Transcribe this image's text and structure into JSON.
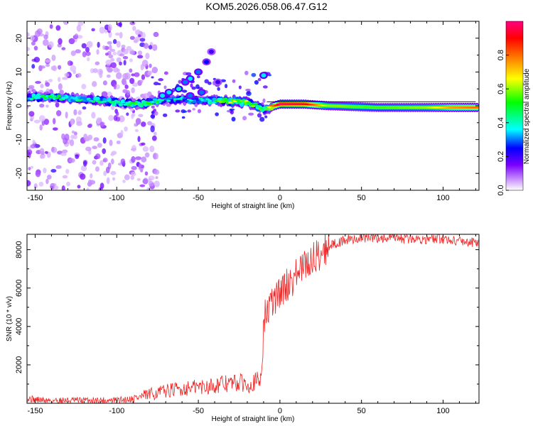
{
  "title": "KOM5.2026.058.06.47.G12",
  "chart_data": [
    {
      "type": "heatmap",
      "xlabel": "Height of straight line (km)",
      "ylabel": "Frequency (Hz)",
      "xlim": [
        -155,
        122
      ],
      "ylim": [
        -25,
        25
      ],
      "xticks": [
        "-150",
        "-100",
        "-50",
        "0",
        "50",
        "100"
      ],
      "yticks": [
        "-20",
        "-10",
        "0",
        "10",
        "20"
      ],
      "colorbar_label": "Normalized spectral amplitude",
      "colorbar_ticks": [
        "0.0",
        "0.2",
        "0.4",
        "0.6",
        "0.8"
      ],
      "colorbar_range": [
        0,
        1
      ],
      "colormap": [
        "#ffffff",
        "#cc99ff",
        "#7a00ff",
        "#0000ff",
        "#00ffff",
        "#00ff00",
        "#ffff00",
        "#ff8000",
        "#ff0000",
        "#ff0080"
      ],
      "main_trace": [
        {
          "x": -155,
          "y": 2.5,
          "amp": 0.35
        },
        {
          "x": -140,
          "y": 2.5,
          "amp": 0.4
        },
        {
          "x": -120,
          "y": 2.0,
          "amp": 0.35
        },
        {
          "x": -100,
          "y": 1.0,
          "amp": 0.4
        },
        {
          "x": -85,
          "y": 0.5,
          "amp": 0.45
        },
        {
          "x": -70,
          "y": 2.0,
          "amp": 0.35
        },
        {
          "x": -50,
          "y": 1.5,
          "amp": 0.3
        },
        {
          "x": -35,
          "y": 1.5,
          "amp": 0.5
        },
        {
          "x": -20,
          "y": 1.0,
          "amp": 0.6
        },
        {
          "x": -10,
          "y": -1.0,
          "amp": 0.4
        },
        {
          "x": 0,
          "y": 0.5,
          "amp": 0.95
        },
        {
          "x": 15,
          "y": 0.5,
          "amp": 0.9
        },
        {
          "x": 30,
          "y": 0.0,
          "amp": 0.55
        },
        {
          "x": 60,
          "y": -0.5,
          "amp": 0.5
        },
        {
          "x": 90,
          "y": -0.5,
          "amp": 0.55
        },
        {
          "x": 105,
          "y": -0.5,
          "amp": 0.7
        },
        {
          "x": 120,
          "y": -0.5,
          "amp": 0.75
        }
      ],
      "blobs": [
        {
          "x": -10,
          "y": 9,
          "amp": 0.35
        },
        {
          "x": -42,
          "y": 16,
          "amp": 0.2
        },
        {
          "x": -45,
          "y": 13,
          "amp": 0.25
        },
        {
          "x": -50,
          "y": 10,
          "amp": 0.3
        },
        {
          "x": -55,
          "y": 8,
          "amp": 0.35
        },
        {
          "x": -58,
          "y": 7,
          "amp": 0.3
        },
        {
          "x": -62,
          "y": 5,
          "amp": 0.4
        },
        {
          "x": -68,
          "y": 4,
          "amp": 0.35
        },
        {
          "x": -72,
          "y": 3,
          "amp": 0.35
        },
        {
          "x": -38,
          "y": 7,
          "amp": 0.2
        },
        {
          "x": -48,
          "y": 4,
          "amp": 0.3
        },
        {
          "x": -55,
          "y": 3,
          "amp": 0.3
        }
      ]
    },
    {
      "type": "line",
      "xlabel": "Height of straight line (km)",
      "ylabel": "SNR (10 * v/v)",
      "xlim": [
        -155,
        122
      ],
      "ylim": [
        0,
        8800
      ],
      "xticks": [
        "-150",
        "-100",
        "-50",
        "0",
        "50",
        "100"
      ],
      "yticks": [
        "2000",
        "4000",
        "6000",
        "8000"
      ],
      "line_color": "#ee2222",
      "series": [
        {
          "x": [
            -155,
            -145,
            -120,
            -100,
            -90,
            -80,
            -70,
            -60,
            -50,
            -40,
            -30,
            -20,
            -12,
            -10,
            -9,
            -5,
            0,
            5,
            10,
            20,
            30,
            40,
            50,
            60,
            80,
            100,
            110,
            122
          ],
          "y": [
            250,
            150,
            150,
            150,
            250,
            450,
            650,
            750,
            850,
            950,
            1050,
            1050,
            1150,
            3800,
            4600,
            5200,
            5800,
            6200,
            6700,
            7500,
            8200,
            8500,
            8600,
            8600,
            8550,
            8550,
            8450,
            8350
          ]
        }
      ]
    }
  ]
}
